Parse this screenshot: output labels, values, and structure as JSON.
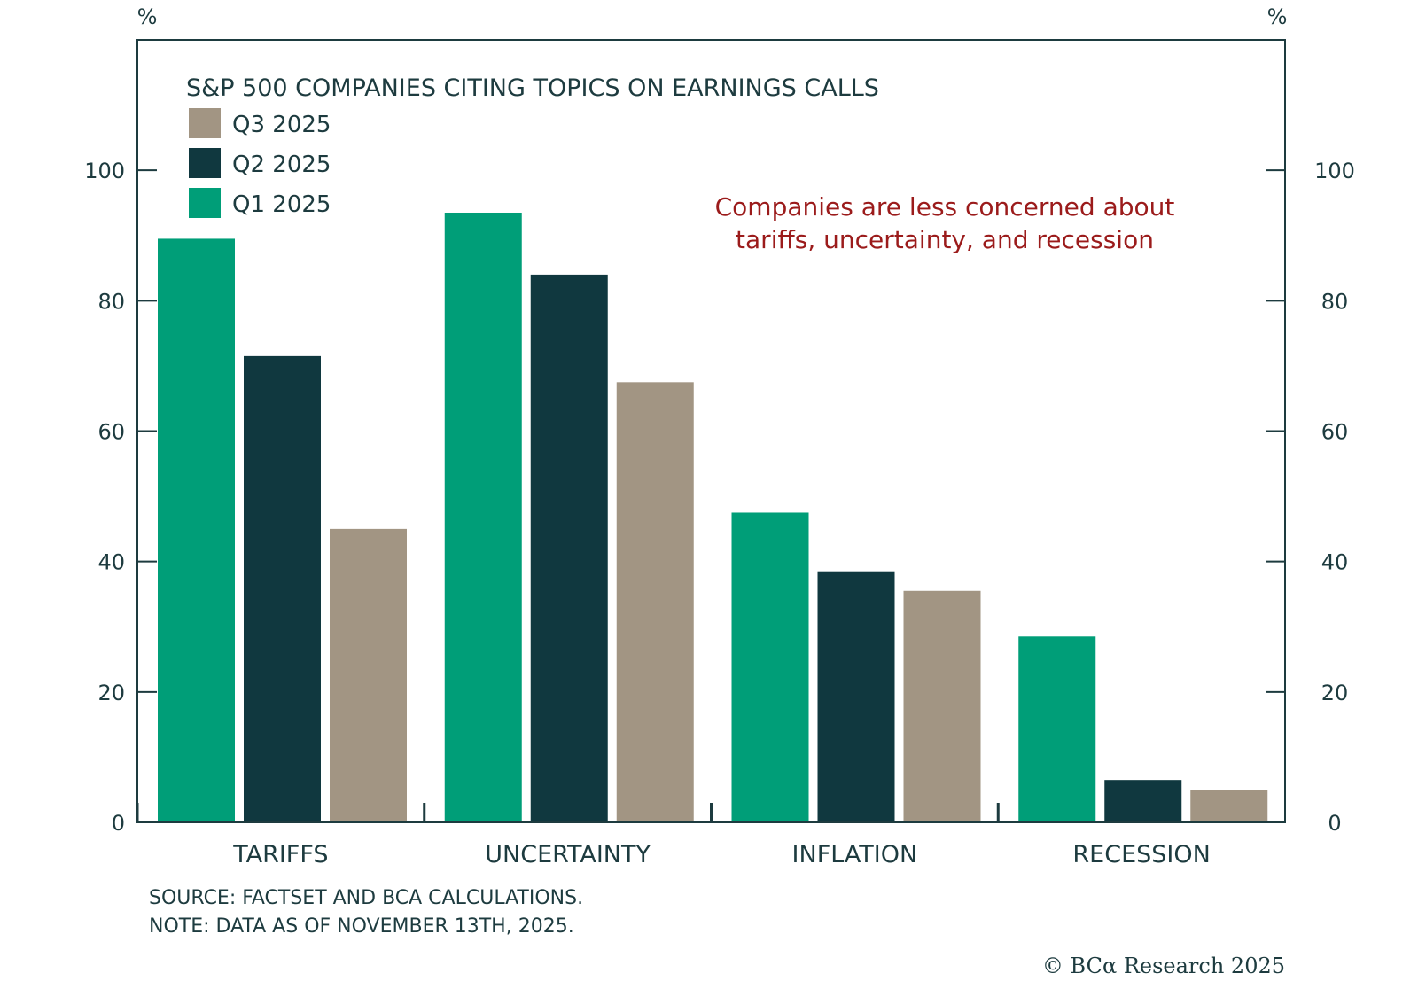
{
  "chart_data": {
    "type": "bar",
    "title": "S&P 500 COMPANIES CITING TOPICS ON EARNINGS CALLS",
    "y_unit_left": "%",
    "y_unit_right": "%",
    "categories": [
      "TARIFFS",
      "UNCERTAINTY",
      "INFLATION",
      "RECESSION"
    ],
    "series": [
      {
        "name": "Q1 2025",
        "color": "#009e78",
        "values": [
          89.5,
          93.5,
          47.5,
          28.5
        ]
      },
      {
        "name": "Q2 2025",
        "color": "#10383f",
        "values": [
          71.5,
          84.0,
          38.5,
          6.5
        ]
      },
      {
        "name": "Q3 2025",
        "color": "#a29583",
        "values": [
          45.0,
          67.5,
          35.5,
          5.0
        ]
      }
    ],
    "legend_order": [
      "Q3 2025",
      "Q2 2025",
      "Q1 2025"
    ],
    "ylim": [
      0,
      120
    ],
    "yticks": [
      0,
      20,
      40,
      60,
      80,
      100
    ],
    "grid": false,
    "legend_position": "top-left",
    "annotation": [
      "Companies are less concerned about",
      "tariffs, uncertainty, and recession"
    ],
    "annotation_color": "#9b1b1b"
  },
  "footnotes": {
    "source": "SOURCE: FACTSET AND BCA CALCULATIONS.",
    "note": "NOTE: DATA AS OF NOVEMBER 13TH, 2025."
  },
  "copyright": "© BCα Research 2025"
}
